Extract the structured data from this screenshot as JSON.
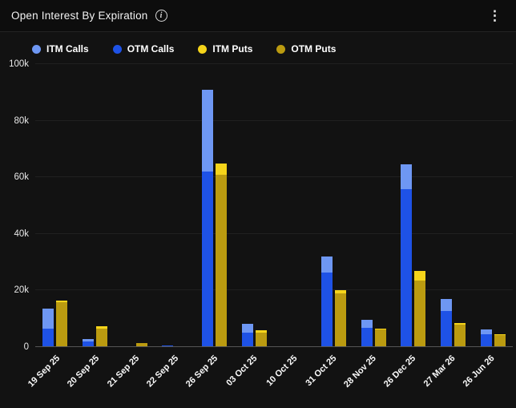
{
  "header": {
    "title": "Open Interest By Expiration",
    "icons": {
      "info": "i",
      "menu": "⋮"
    }
  },
  "chart_data": {
    "type": "bar",
    "stacked": true,
    "title": "Open Interest By Expiration",
    "legend_position": "top",
    "grid": true,
    "categories": [
      "19 Sep 25",
      "20 Sep 25",
      "21 Sep 25",
      "22 Sep 25",
      "26 Sep 25",
      "03 Oct 25",
      "10 Oct 25",
      "31 Oct 25",
      "28 Nov 25",
      "26 Dec 25",
      "27 Mar 26",
      "26 Jun 26"
    ],
    "series": [
      {
        "name": "ITM Calls",
        "stack": "calls",
        "color": "#6e97f3",
        "values": [
          7000,
          800,
          0,
          0,
          29000,
          3000,
          0,
          5500,
          2800,
          9000,
          4200,
          1600
        ]
      },
      {
        "name": "OTM Calls",
        "stack": "calls",
        "color": "#1e52e6",
        "values": [
          6500,
          2000,
          0,
          600,
          62000,
          5100,
          400,
          26400,
          6800,
          55700,
          12700,
          4600
        ]
      },
      {
        "name": "ITM Puts",
        "stack": "puts",
        "color": "#f5d41a",
        "values": [
          500,
          1100,
          0,
          0,
          4000,
          800,
          0,
          1300,
          400,
          3400,
          500,
          300
        ]
      },
      {
        "name": "OTM Puts",
        "stack": "puts",
        "color": "#bb9b10",
        "values": [
          16000,
          6400,
          1300,
          0,
          61000,
          5200,
          0,
          18900,
          6100,
          23500,
          8000,
          4200
        ]
      }
    ],
    "ylim": [
      0,
      100000
    ],
    "yticks": [
      {
        "value": 0,
        "label": "0"
      },
      {
        "value": 20000,
        "label": "20k"
      },
      {
        "value": 40000,
        "label": "40k"
      },
      {
        "value": 60000,
        "label": "60k"
      },
      {
        "value": 80000,
        "label": "80k"
      },
      {
        "value": 100000,
        "label": "100k"
      }
    ],
    "xlabel": "",
    "ylabel": ""
  },
  "colors": {
    "background": "#121212",
    "header_background": "#0d0d0d",
    "gridline": "#202020",
    "zero_line": "#555555",
    "text": "#f2f2f2"
  }
}
